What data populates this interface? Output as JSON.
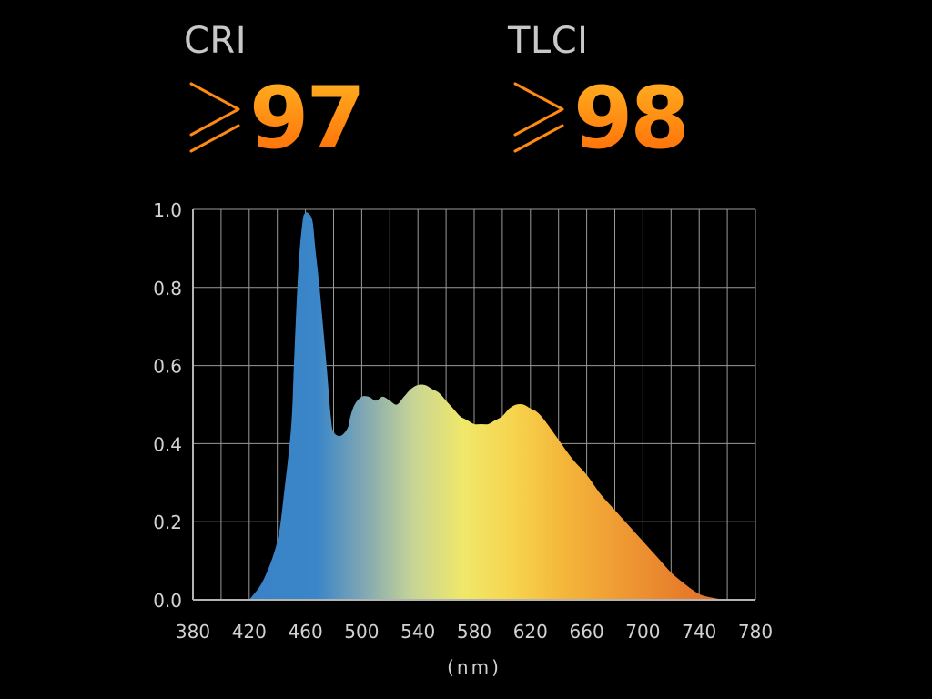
{
  "metrics": {
    "cri": {
      "label": "CRI",
      "symbol": "≥",
      "value": "97"
    },
    "tlci": {
      "label": "TLCI",
      "symbol": "≥",
      "value": "98"
    }
  },
  "colors": {
    "accent_orange": "#ff7a10",
    "accent_yellow": "#ffb020",
    "label_gray": "#c8c8c8",
    "grid": "#9a9a9a",
    "background": "#000000"
  },
  "chart_data": {
    "type": "area",
    "title": "",
    "xlabel": "(nm)",
    "ylabel": "",
    "xlim": [
      380,
      780
    ],
    "ylim": [
      0,
      1.0
    ],
    "x_ticks": [
      "380",
      "420",
      "460",
      "500",
      "540",
      "580",
      "620",
      "660",
      "700",
      "740",
      "780"
    ],
    "y_ticks": [
      "0.0",
      "0.2",
      "0.4",
      "0.6",
      "0.8",
      "1.0"
    ],
    "grid": true,
    "x_grid_step": 20,
    "y_grid_step": 0.2,
    "fill": "spectral gradient (blue to orange)",
    "x": [
      420,
      430,
      440,
      445,
      450,
      452,
      455,
      458,
      460,
      462,
      465,
      467,
      470,
      475,
      478,
      480,
      485,
      490,
      492,
      495,
      500,
      505,
      510,
      515,
      520,
      525,
      530,
      535,
      540,
      545,
      550,
      555,
      560,
      565,
      570,
      575,
      580,
      585,
      590,
      595,
      600,
      605,
      610,
      615,
      620,
      625,
      630,
      640,
      650,
      660,
      670,
      680,
      690,
      700,
      710,
      720,
      730,
      740,
      750,
      760,
      770,
      775,
      780
    ],
    "values": [
      0.0,
      0.05,
      0.15,
      0.28,
      0.45,
      0.62,
      0.85,
      0.97,
      0.99,
      0.99,
      0.97,
      0.9,
      0.8,
      0.6,
      0.47,
      0.43,
      0.42,
      0.44,
      0.47,
      0.5,
      0.52,
      0.52,
      0.51,
      0.52,
      0.51,
      0.5,
      0.52,
      0.54,
      0.55,
      0.55,
      0.54,
      0.53,
      0.51,
      0.49,
      0.47,
      0.46,
      0.45,
      0.45,
      0.45,
      0.46,
      0.47,
      0.49,
      0.5,
      0.5,
      0.49,
      0.48,
      0.46,
      0.41,
      0.36,
      0.32,
      0.27,
      0.23,
      0.19,
      0.15,
      0.11,
      0.07,
      0.04,
      0.015,
      0.005,
      0.0,
      0.0,
      0.0,
      0.0
    ]
  }
}
